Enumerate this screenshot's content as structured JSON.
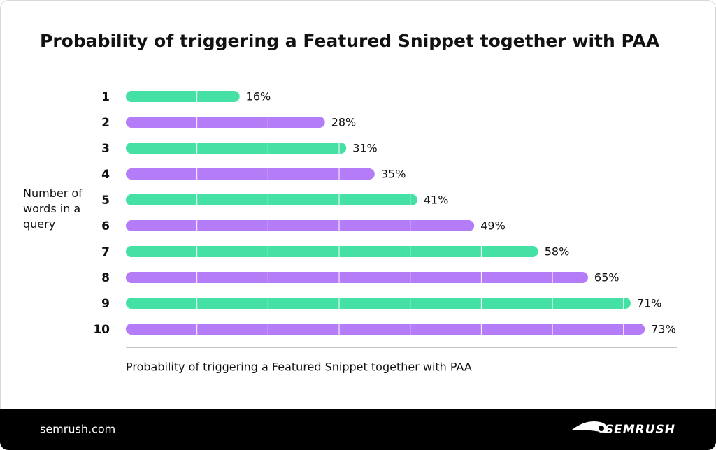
{
  "chart_data": {
    "type": "bar",
    "orientation": "horizontal",
    "title": "Probability of triggering a Featured Snippet together with PAA",
    "xlabel": "Probability of triggering a Featured Snippet together with PAA",
    "ylabel": "Number of words in a query",
    "categories": [
      "1",
      "2",
      "3",
      "4",
      "5",
      "6",
      "7",
      "8",
      "9",
      "10"
    ],
    "values": [
      16,
      28,
      31,
      35,
      41,
      49,
      58,
      65,
      71,
      73
    ],
    "value_labels": [
      "16%",
      "28%",
      "31%",
      "35%",
      "41%",
      "49%",
      "58%",
      "65%",
      "71%",
      "73%"
    ],
    "colors": [
      "#45e0a4",
      "#b57cf7",
      "#45e0a4",
      "#b57cf7",
      "#45e0a4",
      "#b57cf7",
      "#45e0a4",
      "#b57cf7",
      "#45e0a4",
      "#b57cf7"
    ],
    "xlim": [
      0,
      77.5
    ],
    "xticks": [
      10,
      20,
      30,
      40,
      50,
      60,
      70
    ],
    "show_tick_labels": false
  },
  "footer": {
    "site": "semrush.com",
    "brand": "SEMRUSH"
  }
}
